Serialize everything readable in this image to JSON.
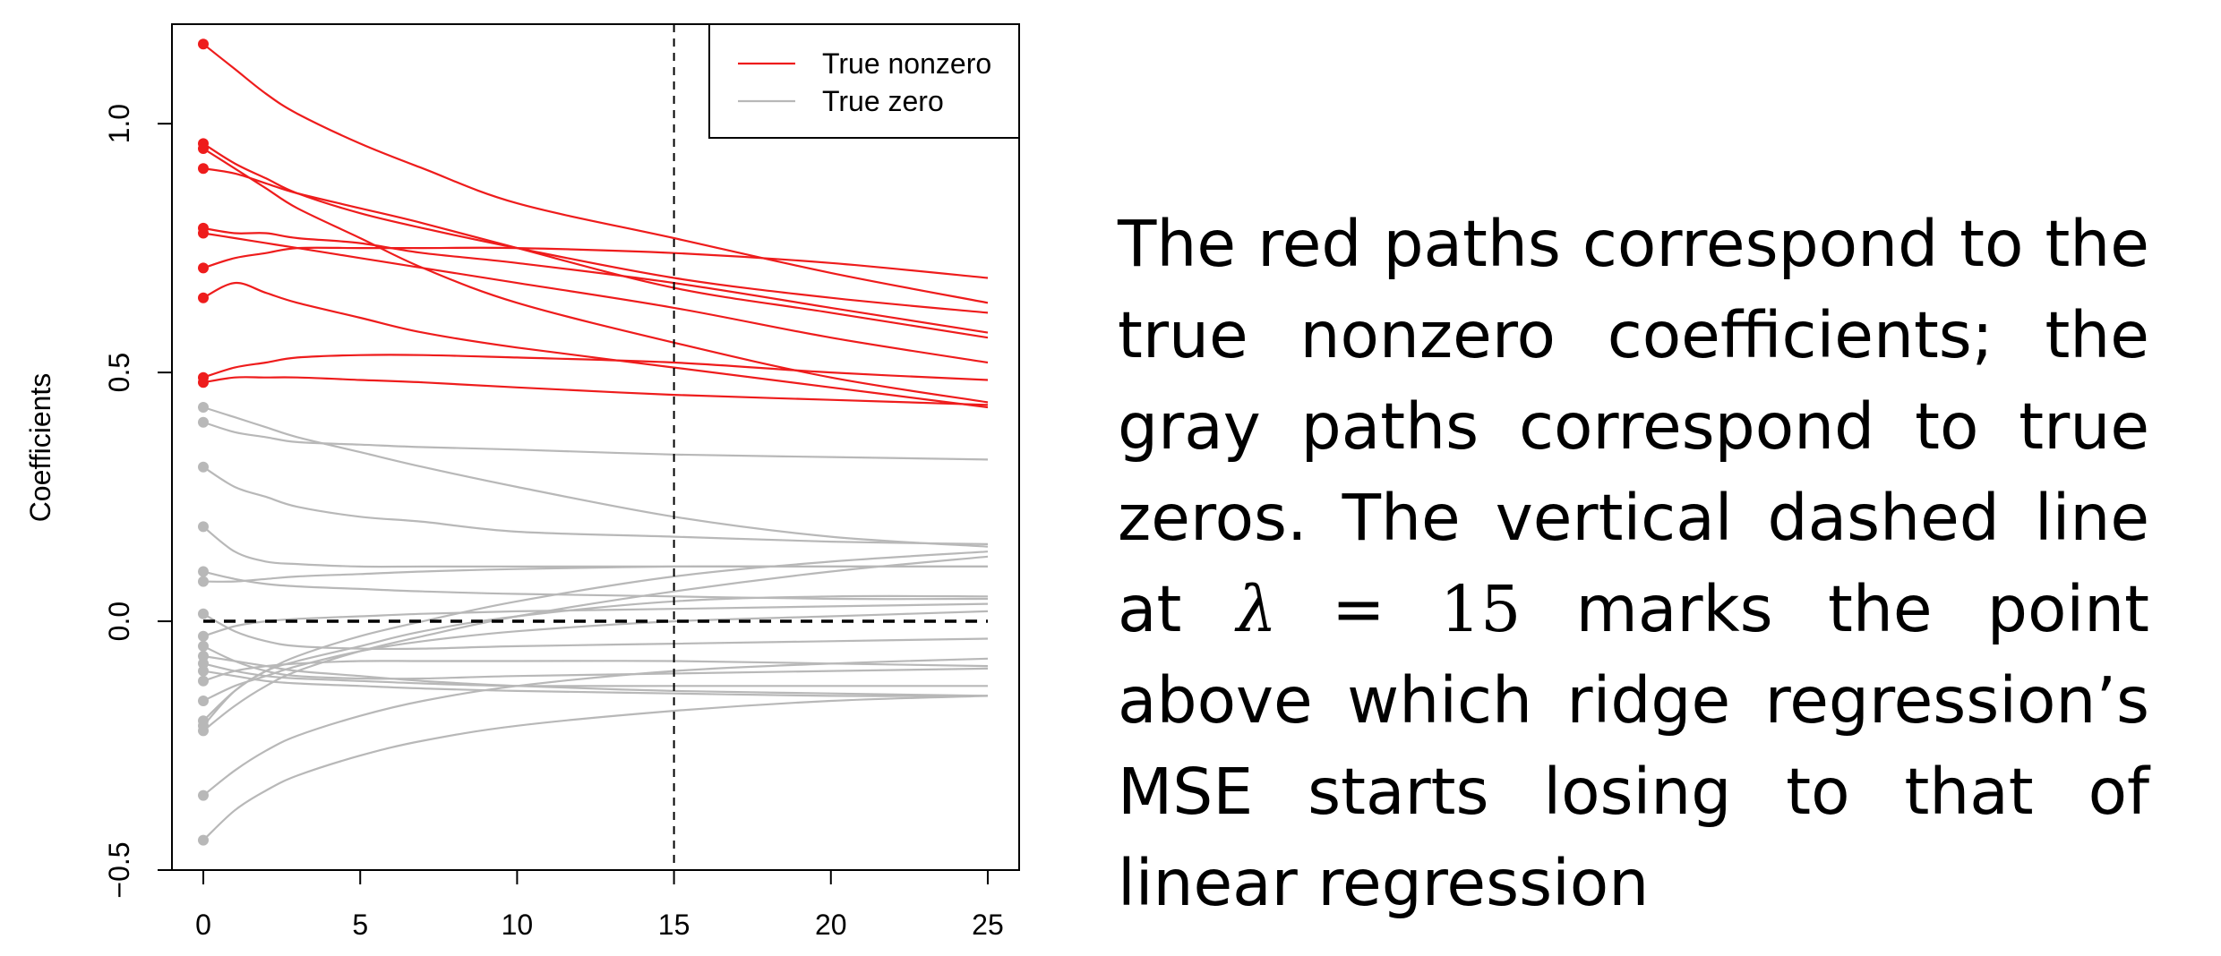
{
  "chart_data": {
    "type": "line",
    "ylabel": "Coefficients",
    "xlim": [
      -1,
      26
    ],
    "ylim": [
      -0.5,
      1.2
    ],
    "x_ticks": [
      "0",
      "5",
      "10",
      "15",
      "20",
      "25"
    ],
    "y_ticks": [
      "-0.5",
      "0.0",
      "0.5",
      "1.0"
    ],
    "x_tick_values": [
      0,
      5,
      10,
      15,
      20,
      25
    ],
    "y_tick_values": [
      -0.5,
      0.0,
      0.5,
      1.0
    ],
    "vertical_line_x": 15,
    "horizontal_line_y": 0,
    "legend": {
      "position": "top-right",
      "entries": [
        {
          "label": "True nonzero",
          "color": "#ee1c1c"
        },
        {
          "label": "True zero",
          "color": "#b8b8b8"
        }
      ]
    },
    "lambda": [
      0,
      1,
      2,
      3,
      5,
      7,
      10,
      15,
      20,
      25
    ],
    "series": [
      {
        "group": "nonzero",
        "values": [
          1.16,
          1.11,
          1.06,
          1.02,
          0.96,
          0.91,
          0.84,
          0.77,
          0.7,
          0.64
        ]
      },
      {
        "group": "nonzero",
        "values": [
          0.96,
          0.92,
          0.89,
          0.86,
          0.82,
          0.79,
          0.75,
          0.69,
          0.65,
          0.62
        ]
      },
      {
        "group": "nonzero",
        "values": [
          0.95,
          0.91,
          0.87,
          0.83,
          0.77,
          0.71,
          0.64,
          0.56,
          0.49,
          0.44
        ]
      },
      {
        "group": "nonzero",
        "values": [
          0.91,
          0.9,
          0.88,
          0.86,
          0.83,
          0.8,
          0.75,
          0.67,
          0.62,
          0.57
        ]
      },
      {
        "group": "nonzero",
        "values": [
          0.79,
          0.78,
          0.78,
          0.77,
          0.76,
          0.74,
          0.72,
          0.68,
          0.63,
          0.58
        ]
      },
      {
        "group": "nonzero",
        "values": [
          0.78,
          0.77,
          0.76,
          0.75,
          0.73,
          0.71,
          0.68,
          0.63,
          0.57,
          0.52
        ]
      },
      {
        "group": "nonzero",
        "values": [
          0.71,
          0.73,
          0.74,
          0.75,
          0.75,
          0.75,
          0.75,
          0.74,
          0.72,
          0.69
        ]
      },
      {
        "group": "nonzero",
        "values": [
          0.65,
          0.68,
          0.66,
          0.64,
          0.61,
          0.58,
          0.55,
          0.51,
          0.47,
          0.43
        ]
      },
      {
        "group": "nonzero",
        "values": [
          0.49,
          0.51,
          0.52,
          0.53,
          0.535,
          0.535,
          0.53,
          0.52,
          0.5,
          0.485
        ]
      },
      {
        "group": "nonzero",
        "values": [
          0.48,
          0.49,
          0.49,
          0.49,
          0.485,
          0.48,
          0.47,
          0.455,
          0.445,
          0.435
        ]
      },
      {
        "group": "zero",
        "values": [
          0.43,
          0.41,
          0.39,
          0.37,
          0.34,
          0.31,
          0.27,
          0.21,
          0.17,
          0.15
        ]
      },
      {
        "group": "zero",
        "values": [
          0.4,
          0.38,
          0.37,
          0.36,
          0.355,
          0.35,
          0.345,
          0.335,
          0.33,
          0.325
        ]
      },
      {
        "group": "zero",
        "values": [
          0.31,
          0.27,
          0.25,
          0.23,
          0.21,
          0.2,
          0.18,
          0.17,
          0.16,
          0.155
        ]
      },
      {
        "group": "zero",
        "values": [
          0.19,
          0.14,
          0.12,
          0.115,
          0.11,
          0.11,
          0.11,
          0.11,
          0.11,
          0.11
        ]
      },
      {
        "group": "zero",
        "values": [
          0.1,
          0.085,
          0.075,
          0.07,
          0.065,
          0.06,
          0.055,
          0.05,
          0.045,
          0.045
        ]
      },
      {
        "group": "zero",
        "values": [
          0.08,
          0.08,
          0.085,
          0.09,
          0.095,
          0.1,
          0.105,
          0.11,
          0.11,
          0.11
        ]
      },
      {
        "group": "zero",
        "values": [
          0.015,
          -0.02,
          -0.04,
          -0.05,
          -0.055,
          -0.055,
          -0.05,
          -0.045,
          -0.04,
          -0.035
        ]
      },
      {
        "group": "zero",
        "values": [
          -0.03,
          -0.01,
          0.0,
          0.005,
          0.01,
          0.015,
          0.02,
          0.025,
          0.03,
          0.035
        ]
      },
      {
        "group": "zero",
        "values": [
          -0.05,
          -0.08,
          -0.1,
          -0.11,
          -0.115,
          -0.115,
          -0.11,
          -0.105,
          -0.1,
          -0.095
        ]
      },
      {
        "group": "zero",
        "values": [
          -0.07,
          -0.08,
          -0.09,
          -0.1,
          -0.11,
          -0.12,
          -0.13,
          -0.14,
          -0.145,
          -0.15
        ]
      },
      {
        "group": "zero",
        "values": [
          -0.085,
          -0.1,
          -0.11,
          -0.115,
          -0.12,
          -0.125,
          -0.13,
          -0.13,
          -0.13,
          -0.13
        ]
      },
      {
        "group": "zero",
        "values": [
          -0.1,
          -0.11,
          -0.12,
          -0.125,
          -0.13,
          -0.135,
          -0.14,
          -0.145,
          -0.15,
          -0.15
        ]
      },
      {
        "group": "zero",
        "values": [
          -0.12,
          -0.1,
          -0.09,
          -0.085,
          -0.08,
          -0.08,
          -0.08,
          -0.08,
          -0.085,
          -0.09
        ]
      },
      {
        "group": "zero",
        "values": [
          -0.16,
          -0.13,
          -0.11,
          -0.09,
          -0.06,
          -0.04,
          -0.02,
          0.0,
          0.01,
          0.02
        ]
      },
      {
        "group": "zero",
        "values": [
          -0.2,
          -0.14,
          -0.1,
          -0.08,
          -0.05,
          -0.02,
          0.01,
          0.04,
          0.05,
          0.05
        ]
      },
      {
        "group": "zero",
        "values": [
          -0.21,
          -0.14,
          -0.1,
          -0.07,
          -0.03,
          0.0,
          0.04,
          0.09,
          0.12,
          0.14
        ]
      },
      {
        "group": "zero",
        "values": [
          -0.22,
          -0.17,
          -0.13,
          -0.1,
          -0.06,
          -0.03,
          0.01,
          0.06,
          0.1,
          0.13
        ]
      },
      {
        "group": "zero",
        "values": [
          -0.35,
          -0.3,
          -0.26,
          -0.23,
          -0.19,
          -0.16,
          -0.13,
          -0.1,
          -0.085,
          -0.075
        ]
      },
      {
        "group": "zero",
        "values": [
          -0.44,
          -0.38,
          -0.34,
          -0.31,
          -0.27,
          -0.24,
          -0.21,
          -0.18,
          -0.16,
          -0.15
        ]
      }
    ]
  },
  "caption": {
    "part1": "The red paths correspond to the true nonzero coefficients; the gray paths correspond to true zeros. The vertical dashed line at ",
    "lambda_symbol": "λ",
    "equals": " = ",
    "lambda_value": "15",
    "part2": " marks the point above which ridge regression’s MSE starts losing to that of linear regression"
  }
}
